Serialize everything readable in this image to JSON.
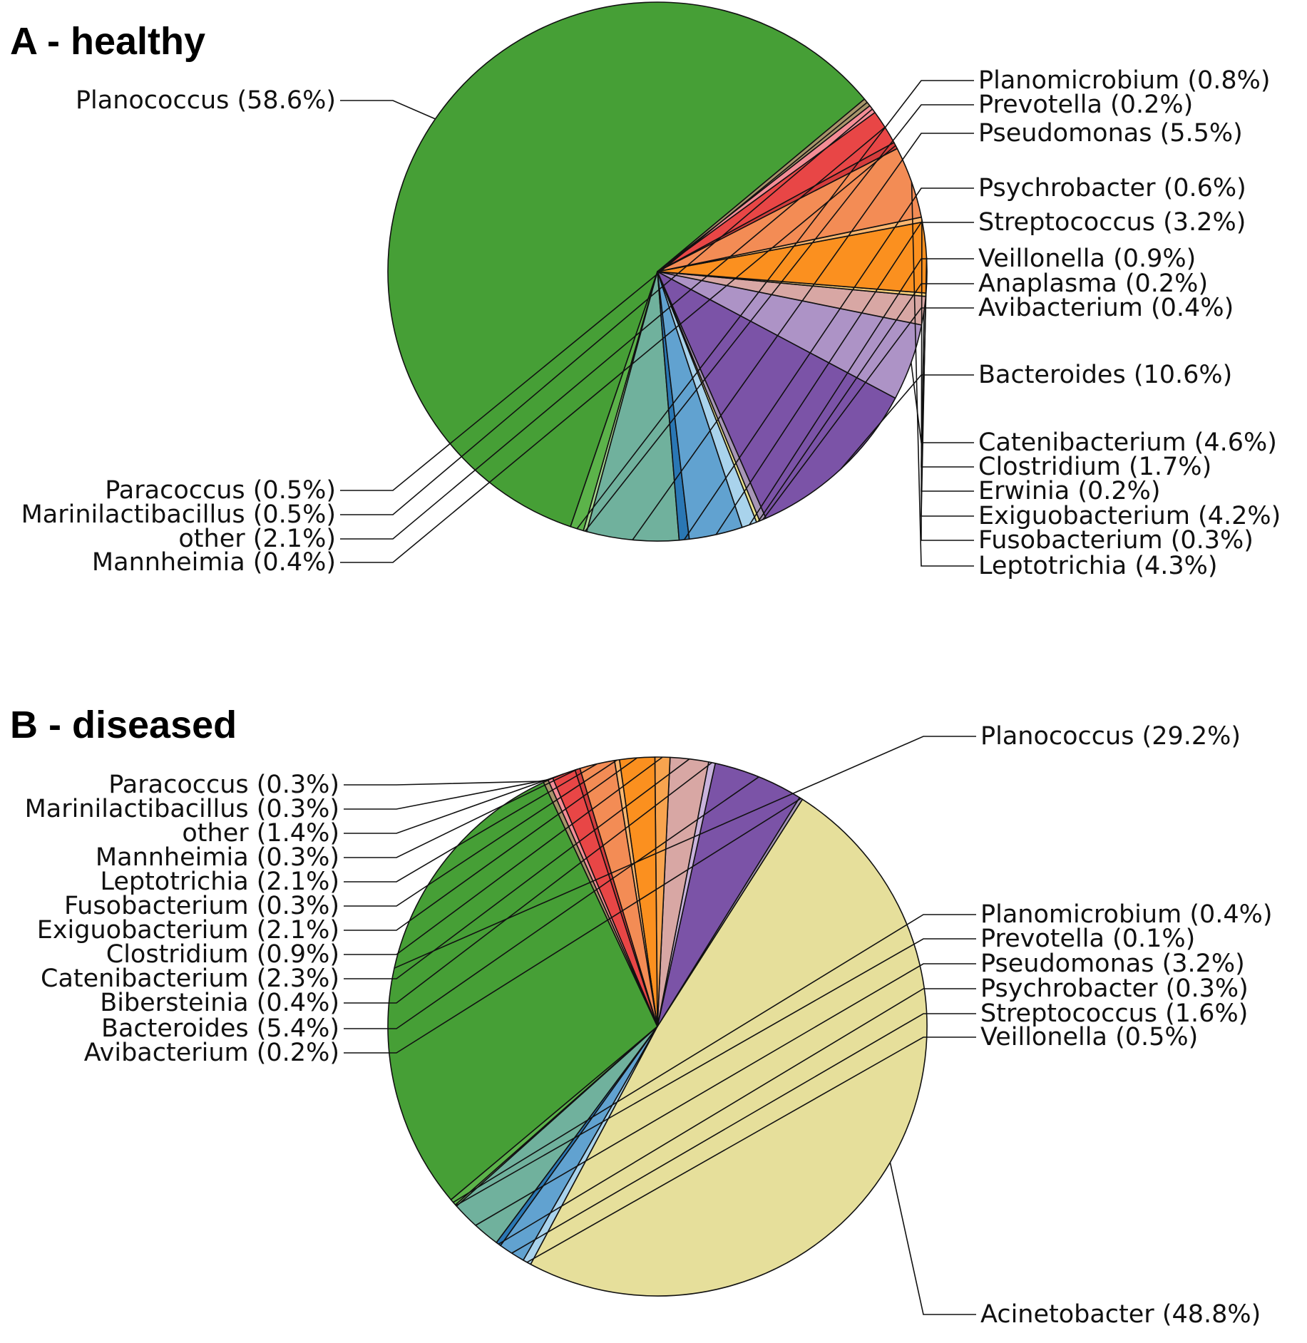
{
  "chart_data": [
    {
      "type": "pie",
      "title": "A - healthy",
      "slices": [
        {
          "label": "Planococcus",
          "value": 58.6,
          "color": "#469f36",
          "text": "Planococcus (58.6%)",
          "side": "left"
        },
        {
          "label": "Planomicrobium",
          "value": 0.8,
          "color": "#5cb34a",
          "text": "Planomicrobium (0.8%)",
          "side": "right"
        },
        {
          "label": "Prevotella",
          "value": 0.2,
          "color": "#a7d88f",
          "text": "Prevotella (0.2%)",
          "side": "right"
        },
        {
          "label": "Pseudomonas",
          "value": 5.5,
          "color": "#70b19d",
          "text": "Pseudomonas (5.5%)",
          "side": "right"
        },
        {
          "label": "Psychrobacter",
          "value": 0.6,
          "color": "#2a77b4",
          "text": "Psychrobacter (0.6%)",
          "side": "right"
        },
        {
          "label": "Streptococcus",
          "value": 3.2,
          "color": "#61a2d0",
          "text": "Streptococcus (3.2%)",
          "side": "right"
        },
        {
          "label": "Veillonella",
          "value": 0.9,
          "color": "#a9d3ec",
          "text": "Veillonella (0.9%)",
          "side": "right"
        },
        {
          "label": "Anaplasma",
          "value": 0.2,
          "color": "#ece490",
          "text": "Anaplasma (0.2%)",
          "side": "right"
        },
        {
          "label": "Avibacterium",
          "value": 0.4,
          "color": "#a796b6",
          "text": "Avibacterium (0.4%)",
          "side": "right"
        },
        {
          "label": "Bacteroides",
          "value": 10.6,
          "color": "#7b53a7",
          "text": "Bacteroides (10.6%)",
          "side": "right"
        },
        {
          "label": "Catenibacterium",
          "value": 4.6,
          "color": "#ad93c6",
          "text": "Catenibacterium (4.6%)",
          "side": "right"
        },
        {
          "label": "Clostridium",
          "value": 1.7,
          "color": "#d8a7a4",
          "text": "Clostridium (1.7%)",
          "side": "right"
        },
        {
          "label": "Erwinia",
          "value": 0.2,
          "color": "#ffd27a",
          "text": "Erwinia (0.2%)",
          "side": "right"
        },
        {
          "label": "Exiguobacterium",
          "value": 4.2,
          "color": "#fb901f",
          "text": "Exiguobacterium (4.2%)",
          "side": "right"
        },
        {
          "label": "Fusobacterium",
          "value": 0.3,
          "color": "#fdb66e",
          "text": "Fusobacterium (0.3%)",
          "side": "right"
        },
        {
          "label": "Leptotrichia",
          "value": 4.3,
          "color": "#f38c55",
          "text": "Leptotrichia (4.3%)",
          "side": "right"
        },
        {
          "label": "Mannheimia",
          "value": 0.4,
          "color": "#d43c3c",
          "text": "Mannheimia (0.4%)",
          "side": "left"
        },
        {
          "label": "other",
          "value": 2.1,
          "color": "#e84646",
          "text": "other (2.1%)",
          "side": "left"
        },
        {
          "label": "Marinilactibacillus",
          "value": 0.5,
          "color": "#f48d96",
          "text": "Marinilactibacillus (0.5%)",
          "side": "left"
        },
        {
          "label": "Paracoccus",
          "value": 0.5,
          "color": "#a8946a",
          "text": "Paracoccus (0.5%)",
          "side": "left"
        }
      ]
    },
    {
      "type": "pie",
      "title": "B - diseased",
      "slices": [
        {
          "label": "Planococcus",
          "value": 29.2,
          "color": "#469f36",
          "text": "Planococcus (29.2%)",
          "side": "right"
        },
        {
          "label": "Planomicrobium",
          "value": 0.4,
          "color": "#5cb34a",
          "text": "Planomicrobium (0.4%)",
          "side": "right"
        },
        {
          "label": "Prevotella",
          "value": 0.1,
          "color": "#a7d88f",
          "text": "Prevotella (0.1%)",
          "side": "right"
        },
        {
          "label": "Pseudomonas",
          "value": 3.2,
          "color": "#70b19d",
          "text": "Pseudomonas (3.2%)",
          "side": "right"
        },
        {
          "label": "Psychrobacter",
          "value": 0.3,
          "color": "#2a77b4",
          "text": "Psychrobacter (0.3%)",
          "side": "right"
        },
        {
          "label": "Streptococcus",
          "value": 1.6,
          "color": "#61a2d0",
          "text": "Streptococcus (1.6%)",
          "side": "right"
        },
        {
          "label": "Veillonella",
          "value": 0.5,
          "color": "#a9d3ec",
          "text": "Veillonella (0.5%)",
          "side": "right"
        },
        {
          "label": "Acinetobacter",
          "value": 48.8,
          "color": "#e6df9b",
          "text": "Acinetobacter (48.8%)",
          "side": "right"
        },
        {
          "label": "Avibacterium",
          "value": 0.2,
          "color": "#a796b6",
          "text": "Avibacterium (0.2%)",
          "side": "left"
        },
        {
          "label": "Bacteroides",
          "value": 5.4,
          "color": "#7b53a7",
          "text": "Bacteroides (5.4%)",
          "side": "left"
        },
        {
          "label": "Bibersteinia",
          "value": 0.4,
          "color": "#c9b3dc",
          "text": "Bibersteinia (0.4%)",
          "side": "left"
        },
        {
          "label": "Catenibacterium",
          "value": 2.3,
          "color": "#d8a7a4",
          "text": "Catenibacterium (2.3%)",
          "side": "left"
        },
        {
          "label": "Clostridium",
          "value": 0.9,
          "color": "#f8a44f",
          "text": "Clostridium (0.9%)",
          "side": "left"
        },
        {
          "label": "Exiguobacterium",
          "value": 2.1,
          "color": "#fb901f",
          "text": "Exiguobacterium (2.1%)",
          "side": "left"
        },
        {
          "label": "Fusobacterium",
          "value": 0.3,
          "color": "#fdb66e",
          "text": "Fusobacterium (0.3%)",
          "side": "left"
        },
        {
          "label": "Leptotrichia",
          "value": 2.1,
          "color": "#f38c55",
          "text": "Leptotrichia (2.1%)",
          "side": "left"
        },
        {
          "label": "Mannheimia",
          "value": 0.3,
          "color": "#d43c3c",
          "text": "Mannheimia (0.3%)",
          "side": "left"
        },
        {
          "label": "other",
          "value": 1.4,
          "color": "#e84646",
          "text": "other (1.4%)",
          "side": "left"
        },
        {
          "label": "Marinilactibacillus",
          "value": 0.3,
          "color": "#f48d96",
          "text": "Marinilactibacillus (0.3%)",
          "side": "left"
        },
        {
          "label": "Paracoccus",
          "value": 0.3,
          "color": "#a8946a",
          "text": "Paracoccus (0.3%)",
          "side": "left"
        }
      ]
    }
  ]
}
